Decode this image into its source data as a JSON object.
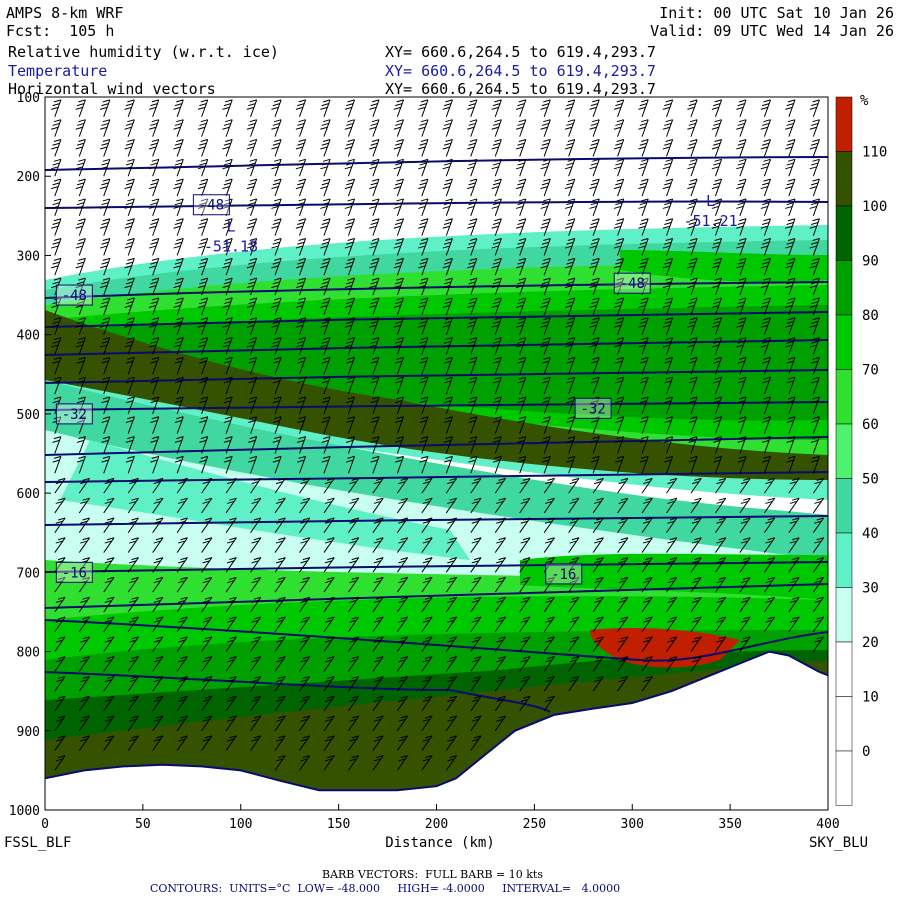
{
  "header": {
    "model": "AMPS 8-km WRF",
    "forecast": "Fcst:  105 h",
    "init": "Init: 00 UTC Sat 10 Jan 26",
    "valid": "Valid: 09 UTC Wed 14 Jan 26",
    "fields": [
      {
        "name": "Relative humidity (w.r.t. ice)",
        "xy": "XY= 660.6,264.5 to 619.4,293.7",
        "color": "#000000"
      },
      {
        "name": "Temperature",
        "xy": "XY= 660.6,264.5 to 619.4,293.7",
        "color": "#1a1aa0"
      },
      {
        "name": "Horizontal wind vectors",
        "xy": "XY= 660.6,264.5 to 619.4,293.7",
        "color": "#000000"
      }
    ]
  },
  "footer": {
    "left_station": "FSSL_BLF",
    "right_station": "SKY_BLU",
    "barb_note": "BARB VECTORS:  FULL BARB = 10 kts",
    "contour_note": "CONTOURS:  UNITS=°C  LOW= -48.000     HIGH= -4.0000     INTERVAL=   4.0000"
  },
  "colorbar": {
    "unit": "%",
    "labels": [
      "110",
      "100",
      "90",
      "80",
      "70",
      "60",
      "50",
      "40",
      "30",
      "20",
      "10",
      "0"
    ],
    "colors": [
      "#c02000",
      "#355200",
      "#006400",
      "#00a000",
      "#00c800",
      "#30e030",
      "#50f070",
      "#40d8a0",
      "#60f0c8",
      "#c8fff0",
      "#ffffff",
      "#ffffff",
      "#ffffff"
    ]
  },
  "chart_data": {
    "type": "cross-section",
    "xlabel": "Distance (km)",
    "ylabel": "",
    "xlim": [
      0,
      400
    ],
    "ylim": [
      1000,
      100
    ],
    "x_ticks": [
      0,
      50,
      100,
      150,
      200,
      250,
      300,
      350,
      400
    ],
    "y_ticks": [
      100,
      200,
      300,
      400,
      500,
      600,
      700,
      800,
      900,
      1000
    ],
    "terrain_surface": [
      [
        0,
        960
      ],
      [
        20,
        950
      ],
      [
        40,
        945
      ],
      [
        60,
        943
      ],
      [
        80,
        945
      ],
      [
        100,
        950
      ],
      [
        120,
        963
      ],
      [
        140,
        975
      ],
      [
        160,
        975
      ],
      [
        180,
        975
      ],
      [
        200,
        970
      ],
      [
        210,
        960
      ],
      [
        225,
        930
      ],
      [
        240,
        900
      ],
      [
        260,
        880
      ],
      [
        280,
        872
      ],
      [
        300,
        865
      ],
      [
        320,
        850
      ],
      [
        340,
        830
      ],
      [
        360,
        810
      ],
      [
        370,
        800
      ],
      [
        380,
        805
      ],
      [
        395,
        825
      ],
      [
        400,
        830
      ]
    ],
    "temperature_contour_labels": [
      {
        "text": "-48",
        "x": 85,
        "p": 236
      },
      {
        "text": "-48",
        "x": 15,
        "p": 350
      },
      {
        "text": "-48",
        "x": 300,
        "p": 335
      },
      {
        "text": "-32",
        "x": 15,
        "p": 500
      },
      {
        "text": "-32",
        "x": 280,
        "p": 493
      },
      {
        "text": "-16",
        "x": 15,
        "p": 700
      },
      {
        "text": "-16",
        "x": 265,
        "p": 702
      }
    ],
    "low_markers": [
      {
        "letter": "L",
        "value": "-51.18",
        "x": 95,
        "p": 285
      },
      {
        "letter": "L",
        "value": "-51.21",
        "x": 340,
        "p": 253
      }
    ]
  }
}
